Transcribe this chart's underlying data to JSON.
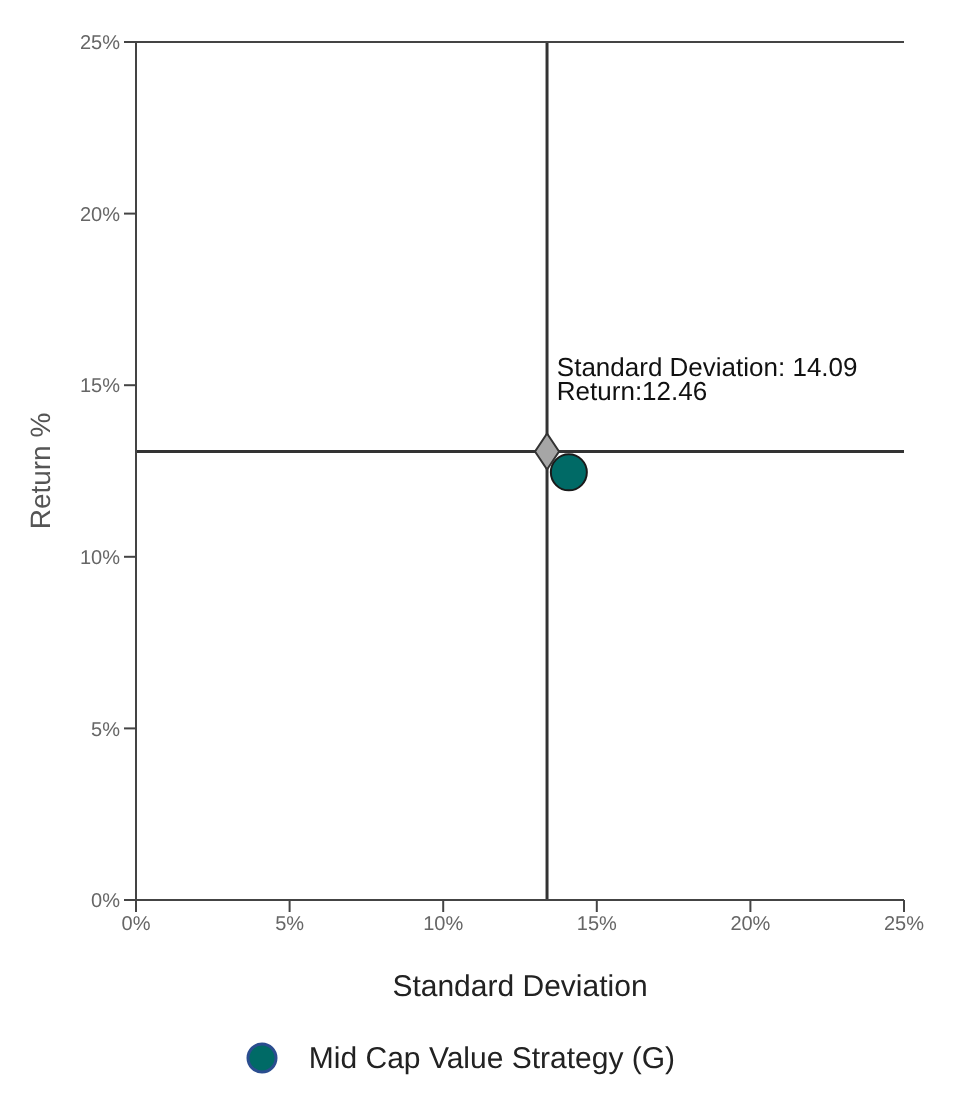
{
  "chart_data": {
    "type": "scatter",
    "xlabel": "Standard Deviation",
    "ylabel": "Return %",
    "xlim": [
      0,
      25
    ],
    "ylim": [
      0,
      25
    ],
    "xticks": [
      {
        "value": 0,
        "label": "0%"
      },
      {
        "value": 5,
        "label": "5%"
      },
      {
        "value": 10,
        "label": "10%"
      },
      {
        "value": 15,
        "label": "15%"
      },
      {
        "value": 20,
        "label": "20%"
      },
      {
        "value": 25,
        "label": "25%"
      }
    ],
    "yticks": [
      {
        "value": 0,
        "label": "0%"
      },
      {
        "value": 5,
        "label": "5%"
      },
      {
        "value": 10,
        "label": "10%"
      },
      {
        "value": 15,
        "label": "15%"
      },
      {
        "value": 20,
        "label": "20%"
      },
      {
        "value": 25,
        "label": "25%"
      }
    ],
    "series": [
      {
        "color": "#a6a6a6",
        "marker": "diamond",
        "x": [
          13.38
        ],
        "values": [
          13.07
        ]
      },
      {
        "name": "Mid Cap Value Strategy (G)",
        "color": "#006a66",
        "marker": "circle",
        "x": [
          14.09
        ],
        "values": [
          12.46
        ]
      }
    ],
    "ref_lines": [
      {
        "axis": "x",
        "value": 13.38,
        "color": "#333333"
      },
      {
        "axis": "y",
        "value": 13.07,
        "color": "#333333"
      }
    ],
    "annotations": [
      "Standard Deviation: 14.09",
      "Return:12.46"
    ],
    "legend": "bottom",
    "grid": false
  }
}
